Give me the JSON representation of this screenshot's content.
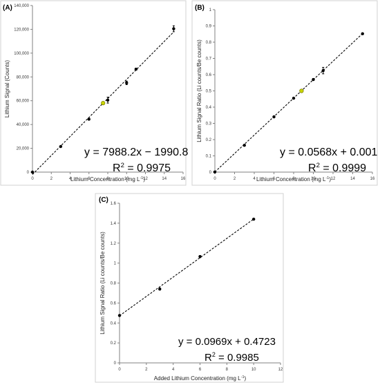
{
  "chart_data": [
    {
      "type": "scatter",
      "panel_label": "(A)",
      "xlabel": "Lithium Concentration (mg L",
      "xlabel_sup": "-1",
      "xlabel_end": ")",
      "ylabel": "Lithium Signal (Counts)",
      "xlim": [
        0,
        16
      ],
      "ylim": [
        0,
        140000
      ],
      "xticks": [
        0,
        2,
        4,
        6,
        8,
        10,
        12,
        14,
        16
      ],
      "xtick_labels": [
        "0",
        "2",
        "4",
        "6",
        "8",
        "10",
        "12",
        "14",
        "16"
      ],
      "yticks": [
        0,
        20000,
        40000,
        60000,
        80000,
        100000,
        120000,
        140000
      ],
      "ytick_labels": [
        "0",
        "20,000",
        "40,000",
        "60,000",
        "80,000",
        "100,000",
        "120,000",
        "140,000"
      ],
      "grid": false,
      "points": [
        {
          "x": 0,
          "y": 0,
          "err": 0
        },
        {
          "x": 3,
          "y": 21500,
          "err": 400
        },
        {
          "x": 6,
          "y": 44500,
          "err": 700
        },
        {
          "x": 8,
          "y": 60500,
          "err": 2500
        },
        {
          "x": 10,
          "y": 75000,
          "err": 1500
        },
        {
          "x": 11,
          "y": 86500,
          "err": 800
        },
        {
          "x": 15,
          "y": 120500,
          "err": 2500
        }
      ],
      "highlight": {
        "x": 7.5,
        "y": 58000,
        "color": "#c8d400"
      },
      "fit": {
        "slope": 7988.2,
        "intercept": -1990.8
      },
      "equation": "y = 7988.2x − 1990.8",
      "r2_label": "R",
      "r2_sup": "2",
      "r2_value": " = 0.9975"
    },
    {
      "type": "scatter",
      "panel_label": "(B)",
      "xlabel": "Lithium Concentration (mg L",
      "xlabel_sup": "-1",
      "xlabel_end": ")",
      "ylabel": "Lithium Signal Ratio (Li counts/Be counts)",
      "xlim": [
        0,
        16
      ],
      "ylim": [
        0,
        1
      ],
      "xticks": [
        0,
        2,
        4,
        6,
        8,
        10,
        12,
        14,
        16
      ],
      "xtick_labels": [
        "0",
        "2",
        "4",
        "6",
        "8",
        "10",
        "12",
        "14",
        "16"
      ],
      "yticks": [
        0,
        0.1,
        0.2,
        0.3,
        0.4,
        0.5,
        0.6,
        0.7,
        0.8,
        0.9,
        1
      ],
      "ytick_labels": [
        "0",
        "0.1",
        "0.2",
        "0.3",
        "0.4",
        "0.5",
        "0.6",
        "0.7",
        "0.8",
        "0.9",
        "1"
      ],
      "grid": false,
      "points": [
        {
          "x": 0,
          "y": 0.001,
          "err": 0
        },
        {
          "x": 3,
          "y": 0.165,
          "err": 0.003
        },
        {
          "x": 6,
          "y": 0.34,
          "err": 0.006
        },
        {
          "x": 8,
          "y": 0.455,
          "err": 0.004
        },
        {
          "x": 10,
          "y": 0.57,
          "err": 0.006
        },
        {
          "x": 11,
          "y": 0.625,
          "err": 0.02
        },
        {
          "x": 15,
          "y": 0.852,
          "err": 0.004
        }
      ],
      "highlight": {
        "x": 8.8,
        "y": 0.5,
        "color": "#c8d400"
      },
      "fit": {
        "slope": 0.0568,
        "intercept": 0.001
      },
      "equation": "y = 0.0568x + 0.001",
      "r2_label": "R",
      "r2_sup": "2",
      "r2_value": " = 0.9999"
    },
    {
      "type": "scatter",
      "panel_label": "(C)",
      "xlabel": "Added Lithium Concentration (mg L",
      "xlabel_sup": "-1",
      "xlabel_end": ")",
      "ylabel": "Lithium Signal Ratio (Li counts/Be counts)",
      "xlim": [
        0,
        12
      ],
      "ylim": [
        0,
        1.6
      ],
      "xticks": [
        0,
        2,
        4,
        6,
        8,
        10,
        12
      ],
      "xtick_labels": [
        "0",
        "2",
        "4",
        "6",
        "8",
        "10",
        "12"
      ],
      "yticks": [
        0,
        0.2,
        0.4,
        0.6,
        0.8,
        1,
        1.2,
        1.4,
        1.6
      ],
      "ytick_labels": [
        "0",
        "0.2",
        "0.4",
        "0.6",
        "0.8",
        "1",
        "1.2",
        "1.4",
        "1.6"
      ],
      "grid": false,
      "points": [
        {
          "x": 0,
          "y": 0.475,
          "err": 0
        },
        {
          "x": 3,
          "y": 0.74,
          "err": 0.01
        },
        {
          "x": 6,
          "y": 1.065,
          "err": 0.01
        },
        {
          "x": 10,
          "y": 1.44,
          "err": 0.005
        }
      ],
      "highlight": null,
      "fit": {
        "slope": 0.0969,
        "intercept": 0.4723
      },
      "equation": "y = 0.0969x + 0.4723",
      "r2_label": "R",
      "r2_sup": "2",
      "r2_value": " = 0.9985"
    }
  ]
}
